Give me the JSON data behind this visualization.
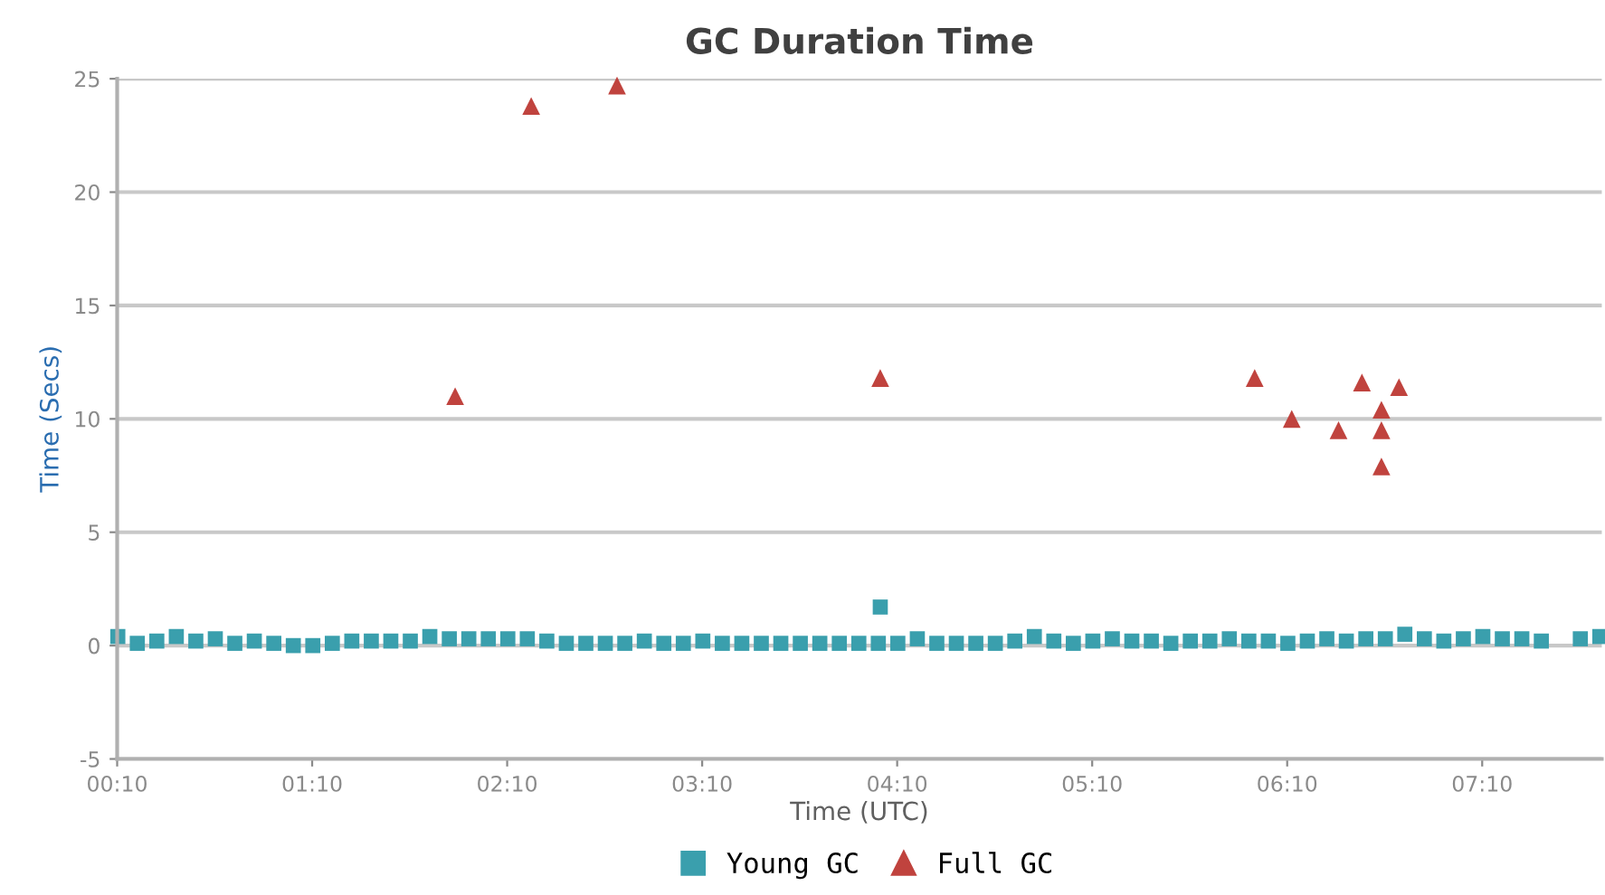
{
  "chart_data": {
    "type": "scatter",
    "title": "GC Duration Time",
    "xlabel": "Time (UTC)",
    "ylabel": "Time (Secs)",
    "xlim": [
      0.1667,
      7.78
    ],
    "xticks": [
      {
        "value": 0.1667,
        "label": "00:10"
      },
      {
        "value": 1.1667,
        "label": "01:10"
      },
      {
        "value": 2.1667,
        "label": "02:10"
      },
      {
        "value": 3.1667,
        "label": "03:10"
      },
      {
        "value": 4.1667,
        "label": "04:10"
      },
      {
        "value": 5.1667,
        "label": "05:10"
      },
      {
        "value": 6.1667,
        "label": "06:10"
      },
      {
        "value": 7.1667,
        "label": "07:10"
      }
    ],
    "ylim": [
      -5,
      25
    ],
    "yticks": [
      -5,
      0,
      5,
      10,
      15,
      20,
      25
    ],
    "grid": "y",
    "legend": "bottom",
    "series": [
      {
        "name": "Young GC",
        "color": "#3a9fad",
        "marker": "square",
        "x": [
          0.17,
          0.27,
          0.37,
          0.47,
          0.57,
          0.67,
          0.77,
          0.87,
          0.97,
          1.07,
          1.17,
          1.27,
          1.37,
          1.47,
          1.57,
          1.67,
          1.77,
          1.87,
          1.97,
          2.07,
          2.17,
          2.27,
          2.37,
          2.47,
          2.57,
          2.67,
          2.77,
          2.87,
          2.97,
          3.07,
          3.17,
          3.27,
          3.37,
          3.47,
          3.57,
          3.67,
          3.77,
          3.87,
          3.97,
          4.07,
          4.17,
          4.27,
          4.37,
          4.47,
          4.57,
          4.67,
          4.77,
          4.87,
          4.97,
          5.07,
          5.17,
          5.27,
          5.37,
          5.47,
          5.57,
          5.67,
          5.77,
          5.87,
          5.97,
          6.07,
          6.17,
          6.27,
          6.37,
          6.47,
          6.57,
          6.67,
          6.77,
          6.87,
          6.97,
          7.07,
          7.17,
          7.27,
          7.37,
          7.47,
          7.67,
          7.77,
          4.08
        ],
        "values": [
          0.4,
          0.1,
          0.2,
          0.4,
          0.2,
          0.3,
          0.1,
          0.2,
          0.1,
          0.0,
          0.0,
          0.1,
          0.2,
          0.2,
          0.2,
          0.2,
          0.4,
          0.3,
          0.3,
          0.3,
          0.3,
          0.3,
          0.2,
          0.1,
          0.1,
          0.1,
          0.1,
          0.2,
          0.1,
          0.1,
          0.2,
          0.1,
          0.1,
          0.1,
          0.1,
          0.1,
          0.1,
          0.1,
          0.1,
          0.1,
          0.1,
          0.3,
          0.1,
          0.1,
          0.1,
          0.1,
          0.2,
          0.4,
          0.2,
          0.1,
          0.2,
          0.3,
          0.2,
          0.2,
          0.1,
          0.2,
          0.2,
          0.3,
          0.2,
          0.2,
          0.1,
          0.2,
          0.3,
          0.2,
          0.3,
          0.3,
          0.5,
          0.3,
          0.2,
          0.3,
          0.4,
          0.3,
          0.3,
          0.2,
          0.3,
          0.4,
          1.7
        ]
      },
      {
        "name": "Full GC",
        "color": "#c0433e",
        "marker": "triangle",
        "x": [
          1.9,
          2.29,
          2.73,
          4.08,
          6.0,
          6.19,
          6.43,
          6.55,
          6.65,
          6.65,
          6.65,
          6.74
        ],
        "values": [
          11.0,
          23.8,
          24.7,
          11.8,
          11.8,
          10.0,
          9.5,
          11.6,
          10.4,
          9.5,
          7.9,
          11.4
        ]
      }
    ]
  }
}
